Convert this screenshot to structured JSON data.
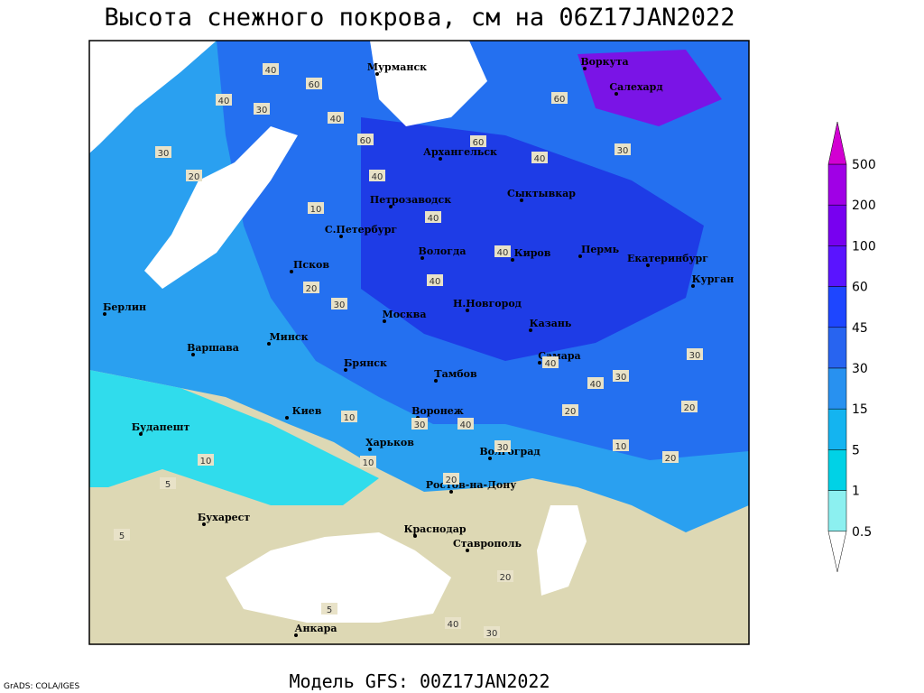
{
  "header": {
    "title": "Высота снежного покрова, см на 06Z17JAN2022"
  },
  "footer": {
    "model": "Модель GFS: 00Z17JAN2022",
    "credit": "GrADS: COLA/IGES"
  },
  "cities": [
    "Мурманск",
    "Воркута",
    "Салехард",
    "Архангельск",
    "Петрозаводск",
    "Сыктывкар",
    "С.Петербург",
    "Вологда",
    "Киров",
    "Пермь",
    "Екатеринбург",
    "Псков",
    "Курган",
    "Берлин",
    "Н.Новгород",
    "Москва",
    "Казань",
    "Минск",
    "Варшава",
    "Самара",
    "Брянск",
    "Тамбов",
    "Киев",
    "Воронеж",
    "Будапешт",
    "Харьков",
    "Волгоград",
    "Ростов-на-Дону",
    "Бухарест",
    "Краснодар",
    "Ставрополь",
    "Анкара"
  ],
  "contour_labels": [
    40,
    30,
    60,
    40,
    30,
    20,
    40,
    60,
    40,
    60,
    40,
    10,
    20,
    40,
    30,
    40,
    40,
    60,
    30,
    20,
    30,
    40,
    10,
    40,
    20,
    30,
    40,
    30,
    20,
    10,
    20,
    10,
    5,
    5,
    10,
    5,
    30,
    20,
    40,
    30
  ],
  "legend": {
    "levels": [
      500,
      200,
      100,
      60,
      45,
      30,
      15,
      5,
      1,
      0.5
    ],
    "colors": [
      "#d200d2",
      "#a000e6",
      "#7800f0",
      "#5a14ff",
      "#1e46ff",
      "#2864f0",
      "#2891f0",
      "#14b4f0",
      "#00d2e6",
      "#8cf0f0",
      "#ffffff"
    ]
  }
}
